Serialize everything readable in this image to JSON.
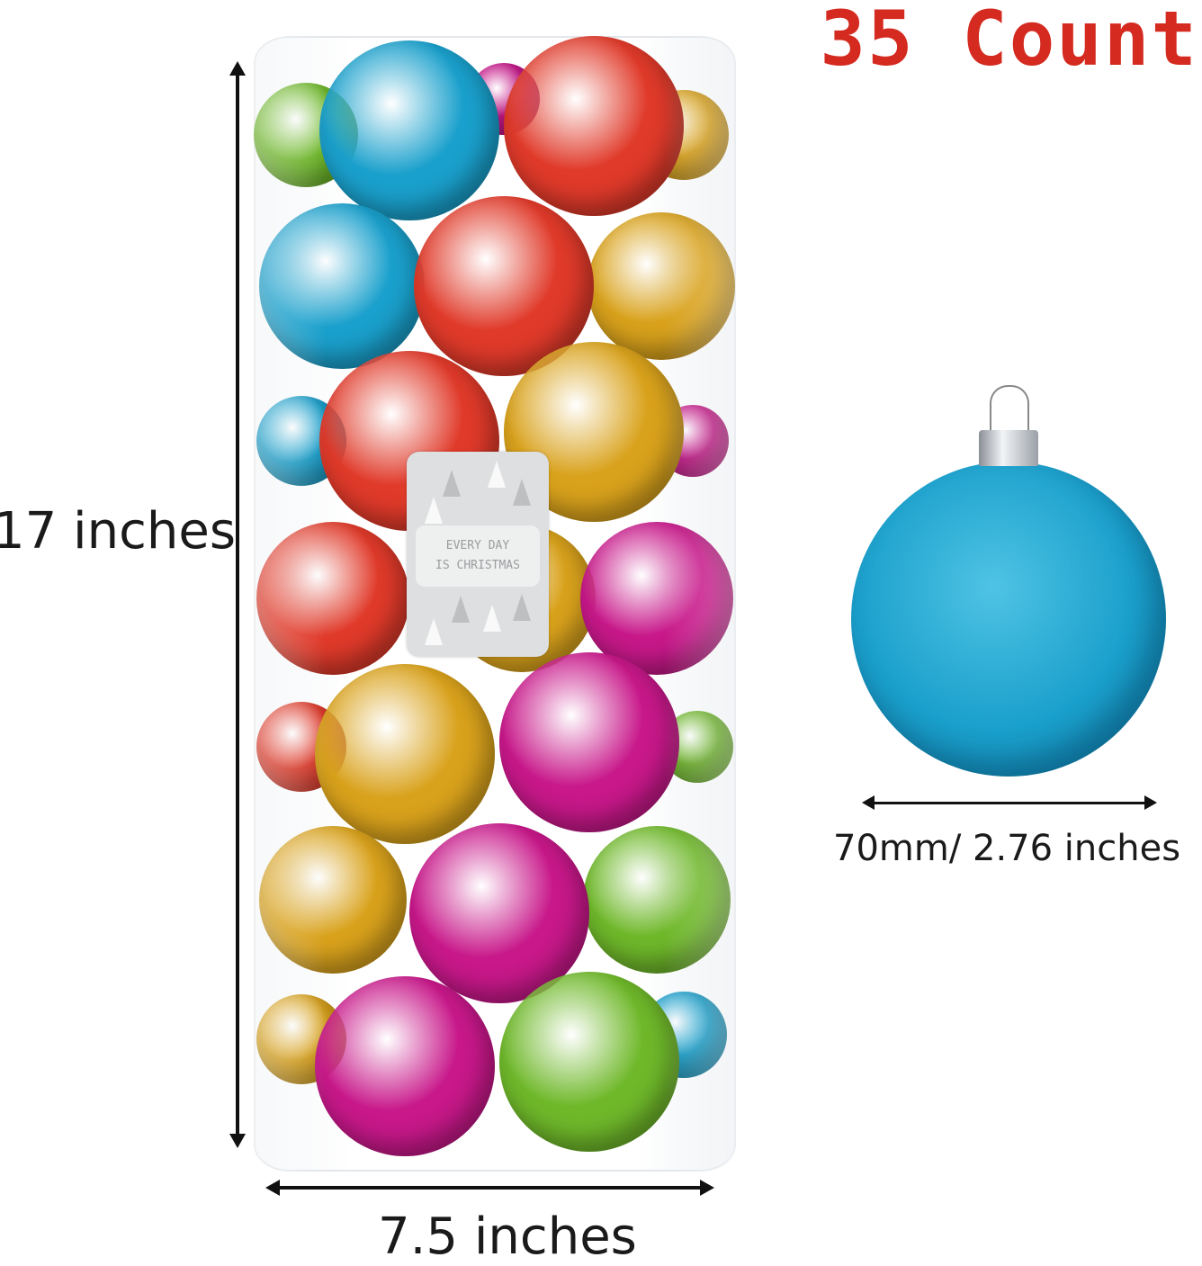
{
  "headline": "35 Count",
  "tube": {
    "height_label": "17 inches",
    "width_label": "7.5 inches",
    "label_line1": "EVERY DAY",
    "label_line2": "IS CHRISTMAS"
  },
  "ornament": {
    "diameter_label": "70mm/ 2.76 inches",
    "color": "#1aa0cc"
  },
  "colors": {
    "headline": "#d42a1f",
    "ball_colors": [
      "#e03a2a",
      "#1aa0cc",
      "#d9a21c",
      "#c8188a",
      "#6fb82a"
    ]
  }
}
